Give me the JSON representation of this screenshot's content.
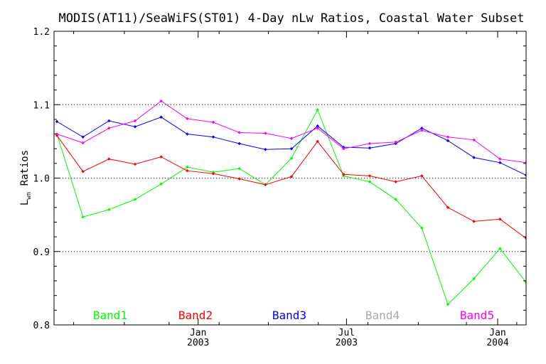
{
  "chart_data": {
    "type": "line",
    "title": "MODIS(AT11)/SeaWiFS(ST01) 4-Day nLw Ratios, Coastal Water Subset",
    "ylabel": "L",
    "ylabel_sub": "wn",
    "ylabel_rest": " Ratios",
    "ylim": [
      0.8,
      1.2
    ],
    "y_ticks": [
      "0.8",
      "0.9",
      "1.0",
      "1.1",
      "1.2"
    ],
    "y_tick_values": [
      0.8,
      0.9,
      1.0,
      1.1,
      1.2
    ],
    "grid_lines": [
      0.9,
      1.0,
      1.1
    ],
    "x_ticks": [
      {
        "month": "Jan",
        "year": "2003"
      },
      {
        "month": "Jul",
        "year": "2003"
      },
      {
        "month": "Jan",
        "year": "2004"
      }
    ],
    "legend_placement": "bottom",
    "series": [
      {
        "name": "Band1",
        "color": "#00ff00",
        "points": [
          [
            0,
            1.06
          ],
          [
            1,
            0.947
          ],
          [
            2,
            0.957
          ],
          [
            3,
            0.971
          ],
          [
            4,
            0.992
          ],
          [
            5,
            1.015
          ],
          [
            6,
            1.008
          ],
          [
            7,
            1.013
          ],
          [
            8,
            0.991
          ],
          [
            9,
            1.027
          ],
          [
            10,
            1.093
          ],
          [
            11,
            1.003
          ],
          [
            12,
            0.995
          ],
          [
            13,
            0.971
          ],
          [
            14,
            0.932
          ],
          [
            15,
            0.828
          ],
          [
            16,
            0.863
          ],
          [
            17,
            0.904
          ],
          [
            18,
            0.858
          ]
        ]
      },
      {
        "name": "Band2",
        "color": "#ff0000",
        "points": [
          [
            0,
            1.058
          ],
          [
            1,
            1.009
          ],
          [
            2,
            1.026
          ],
          [
            3,
            1.019
          ],
          [
            4,
            1.029
          ],
          [
            5,
            1.01
          ],
          [
            6,
            1.006
          ],
          [
            7,
            0.999
          ],
          [
            8,
            0.991
          ],
          [
            9,
            1.002
          ],
          [
            10,
            1.05
          ],
          [
            11,
            1.005
          ],
          [
            12,
            1.003
          ],
          [
            13,
            0.995
          ],
          [
            14,
            1.003
          ],
          [
            15,
            0.96
          ],
          [
            16,
            0.941
          ],
          [
            17,
            0.944
          ],
          [
            18,
            0.918
          ]
        ]
      },
      {
        "name": "Band3",
        "color": "#0000ff",
        "points": [
          [
            0,
            1.077
          ],
          [
            1,
            1.056
          ],
          [
            2,
            1.078
          ],
          [
            3,
            1.07
          ],
          [
            4,
            1.083
          ],
          [
            5,
            1.06
          ],
          [
            6,
            1.056
          ],
          [
            7,
            1.047
          ],
          [
            8,
            1.039
          ],
          [
            9,
            1.04
          ],
          [
            10,
            1.071
          ],
          [
            11,
            1.042
          ],
          [
            12,
            1.041
          ],
          [
            13,
            1.047
          ],
          [
            14,
            1.068
          ],
          [
            15,
            1.051
          ],
          [
            16,
            1.028
          ],
          [
            17,
            1.021
          ],
          [
            18,
            1.004
          ]
        ]
      },
      {
        "name": "Band4",
        "color": "#aaaaaa",
        "points": []
      },
      {
        "name": "Band5",
        "color": "#ff00ff",
        "points": [
          [
            0,
            1.06
          ],
          [
            1,
            1.048
          ],
          [
            2,
            1.068
          ],
          [
            3,
            1.078
          ],
          [
            4,
            1.105
          ],
          [
            5,
            1.081
          ],
          [
            6,
            1.076
          ],
          [
            7,
            1.062
          ],
          [
            8,
            1.061
          ],
          [
            9,
            1.054
          ],
          [
            10,
            1.068
          ],
          [
            11,
            1.04
          ],
          [
            12,
            1.047
          ],
          [
            13,
            1.049
          ],
          [
            14,
            1.065
          ],
          [
            15,
            1.056
          ],
          [
            16,
            1.052
          ],
          [
            17,
            1.026
          ],
          [
            18,
            1.021
          ]
        ]
      }
    ]
  }
}
